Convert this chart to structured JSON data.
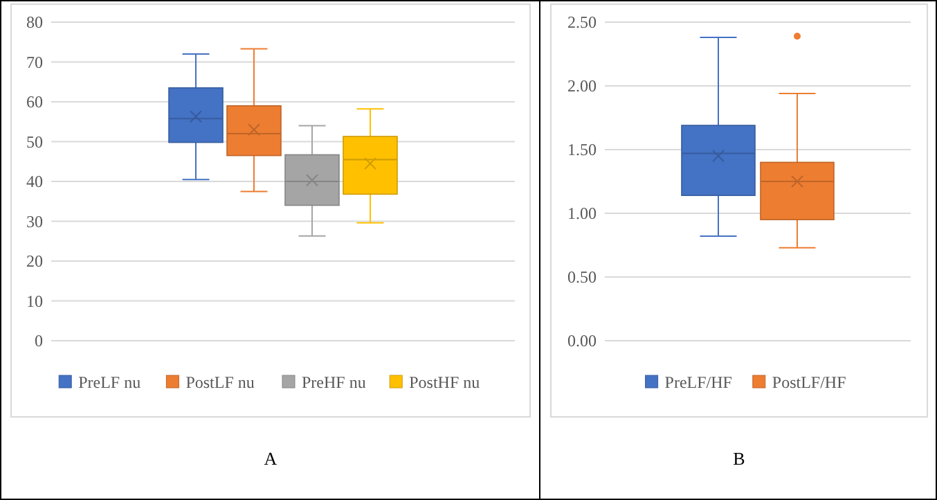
{
  "chart_data": [
    {
      "type": "box",
      "categories": [
        null
      ],
      "ylim": [
        0,
        80
      ],
      "yticks": [
        0,
        10,
        20,
        30,
        40,
        50,
        60,
        70,
        80
      ],
      "grid": "y",
      "legend": "bottom",
      "annotations": [
        "A"
      ],
      "series": [
        {
          "name": "PreLF nu",
          "color": "#4472c4",
          "boxes": [
            {
              "low": 40.5,
              "q1": 49.8,
              "median": 55.8,
              "q3": 63.5,
              "high": 72,
              "mean": 56.3
            }
          ]
        },
        {
          "name": "PostLF nu",
          "color": "#ed7d31",
          "boxes": [
            {
              "low": 37.5,
              "q1": 46.5,
              "median": 52,
              "q3": 59,
              "high": 73.3,
              "mean": 53
            }
          ]
        },
        {
          "name": "PreHF nu",
          "color": "#a5a5a5",
          "boxes": [
            {
              "low": 26.3,
              "q1": 34,
              "median": 40,
              "q3": 46.7,
              "high": 54,
              "mean": 40.3
            }
          ]
        },
        {
          "name": "PostHF nu",
          "color": "#ffc000",
          "boxes": [
            {
              "low": 29.6,
              "q1": 36.8,
              "median": 45.5,
              "q3": 51.3,
              "high": 58.2,
              "mean": 44.5
            }
          ]
        }
      ]
    },
    {
      "type": "box",
      "categories": [
        null
      ],
      "ylim": [
        0,
        2.5
      ],
      "yticks": [
        {
          "value": 0,
          "label": "0.00"
        },
        {
          "value": 0.5,
          "label": "0.50"
        },
        {
          "value": 1,
          "label": "1.00"
        },
        {
          "value": 1.5,
          "label": "1.50"
        },
        {
          "value": 2,
          "label": "2.00"
        },
        {
          "value": 2.5,
          "label": "2.50"
        }
      ],
      "grid": "y",
      "legend": "bottom",
      "annotations": [
        "B"
      ],
      "series": [
        {
          "name": "PreLF/HF",
          "color": "#4472c4",
          "boxes": [
            {
              "low": 0.82,
              "q1": 1.14,
              "median": 1.47,
              "q3": 1.69,
              "high": 2.38,
              "mean": 1.45
            }
          ]
        },
        {
          "name": "PostLF/HF",
          "color": "#ed7d31",
          "boxes": [
            {
              "low": 0.73,
              "q1": 0.95,
              "median": 1.25,
              "q3": 1.4,
              "high": 1.94,
              "mean": 1.25,
              "outliers": [
                2.39
              ]
            }
          ]
        }
      ]
    }
  ]
}
